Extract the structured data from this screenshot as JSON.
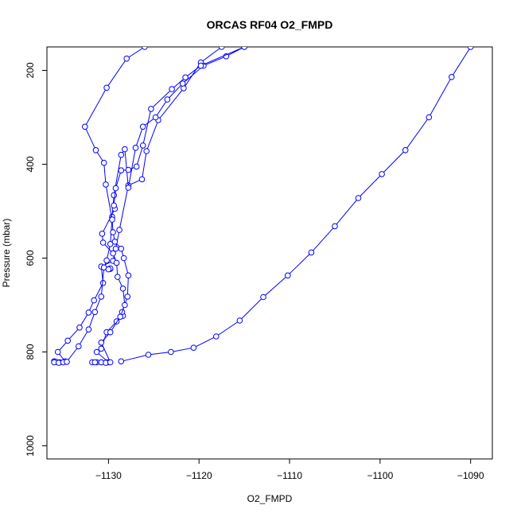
{
  "chart_data": {
    "type": "line",
    "title": "ORCAS RF04 O2_FMPD",
    "xlabel": "O2_FMPD",
    "ylabel": "Pressure (mbar)",
    "xlim": [
      -1136.8,
      -1087.6
    ],
    "ylim": [
      1028,
      150
    ],
    "y_reversed": true,
    "x_ticks": [
      -1130,
      -1120,
      -1110,
      -1100,
      -1090
    ],
    "y_ticks": [
      200,
      400,
      600,
      800,
      1000
    ],
    "grid": false,
    "legend": "none",
    "marker": "open-circle",
    "line_color": "#0000ff",
    "series": [
      {
        "points": [
          [
            -1136,
            820
          ],
          [
            -1135.8,
            821
          ],
          [
            -1135.4,
            822
          ],
          [
            -1135,
            822
          ],
          [
            -1134.8,
            820
          ],
          [
            -1135.6,
            800
          ],
          [
            -1134.5,
            776
          ],
          [
            -1133.2,
            748
          ],
          [
            -1132.2,
            716
          ],
          [
            -1131.6,
            690
          ],
          [
            -1130.6,
            653
          ],
          [
            -1130.8,
            618
          ],
          [
            -1129.5,
            606
          ],
          [
            -1129.2,
            580
          ],
          [
            -1128.8,
            540
          ],
          [
            -1127.8,
            445
          ],
          [
            -1126.3,
            432
          ],
          [
            -1125.8,
            372
          ],
          [
            -1124.5,
            306
          ],
          [
            -1121.7,
            238
          ],
          [
            -1119.8,
            183
          ],
          [
            -1117.5,
            150
          ]
        ]
      },
      {
        "points": [
          [
            -1136,
            822
          ],
          [
            -1135.5,
            823
          ],
          [
            -1135,
            822
          ],
          [
            -1134.6,
            821
          ],
          [
            -1133.3,
            788
          ],
          [
            -1132.2,
            752
          ],
          [
            -1131.5,
            715
          ],
          [
            -1130.8,
            682
          ],
          [
            -1130.5,
            620
          ],
          [
            -1130.2,
            605
          ],
          [
            -1129.8,
            570
          ],
          [
            -1129.6,
            512
          ],
          [
            -1129.4,
            466
          ],
          [
            -1128.6,
            380
          ],
          [
            -1128.2,
            368
          ],
          [
            -1127.8,
            450
          ],
          [
            -1127,
            365
          ],
          [
            -1126.2,
            320
          ],
          [
            -1124.8,
            300
          ],
          [
            -1123.5,
            262
          ],
          [
            -1121.8,
            228
          ],
          [
            -1119.5,
            190
          ],
          [
            -1117,
            170
          ],
          [
            -1115,
            150
          ]
        ]
      },
      {
        "points": [
          [
            -1131.8,
            822
          ],
          [
            -1131.3,
            822
          ],
          [
            -1130.8,
            822
          ],
          [
            -1130.2,
            822
          ],
          [
            -1130,
            822
          ],
          [
            -1131.3,
            800
          ],
          [
            -1130.8,
            793
          ],
          [
            -1130.2,
            758
          ],
          [
            -1129.1,
            735
          ],
          [
            -1128.4,
            723
          ],
          [
            -1128.5,
            715
          ],
          [
            -1127.9,
            682
          ],
          [
            -1127.8,
            637
          ],
          [
            -1128.3,
            600
          ],
          [
            -1128.6,
            580
          ],
          [
            -1129.3,
            565
          ],
          [
            -1129.5,
            545
          ],
          [
            -1129.6,
            518
          ],
          [
            -1130.3,
            443
          ],
          [
            -1130.5,
            397
          ],
          [
            -1131.4,
            370
          ],
          [
            -1132.6,
            320
          ],
          [
            -1130.2,
            237
          ],
          [
            -1128,
            175
          ],
          [
            -1126,
            150
          ]
        ]
      },
      {
        "points": [
          [
            -1131.5,
            822
          ],
          [
            -1130.8,
            822
          ],
          [
            -1130.3,
            823
          ],
          [
            -1129.8,
            822
          ],
          [
            -1130.8,
            780
          ],
          [
            -1129.8,
            758
          ],
          [
            -1128.7,
            725
          ],
          [
            -1128.2,
            700
          ],
          [
            -1128.4,
            665
          ],
          [
            -1129,
            640
          ],
          [
            -1129.1,
            610
          ],
          [
            -1129.5,
            590
          ],
          [
            -1130.6,
            567
          ],
          [
            -1130.7,
            548
          ],
          [
            -1129.3,
            495
          ],
          [
            -1129.4,
            488
          ],
          [
            -1129.2,
            451
          ],
          [
            -1128.6,
            413
          ],
          [
            -1127.8,
            412
          ],
          [
            -1126.9,
            405
          ],
          [
            -1126.2,
            360
          ],
          [
            -1125.3,
            282
          ],
          [
            -1123,
            240
          ],
          [
            -1121.5,
            215
          ],
          [
            -1119.8,
            190
          ],
          [
            -1115,
            150
          ]
        ]
      },
      {
        "points": [
          [
            -1128.6,
            820
          ],
          [
            -1125.6,
            806
          ],
          [
            -1123.1,
            800
          ],
          [
            -1120.6,
            791
          ],
          [
            -1118.1,
            767
          ],
          [
            -1115.5,
            733
          ],
          [
            -1112.9,
            683
          ],
          [
            -1110.2,
            637
          ],
          [
            -1107.6,
            588
          ],
          [
            -1105,
            532
          ],
          [
            -1102.4,
            472
          ],
          [
            -1099.8,
            421
          ],
          [
            -1097.2,
            370
          ],
          [
            -1094.6,
            300
          ],
          [
            -1092.1,
            214
          ],
          [
            -1090,
            150
          ]
        ]
      },
      {
        "points": [
          [
            -1129.8,
            623
          ],
          [
            -1129.9,
            623
          ],
          [
            -1129.8,
            622
          ],
          [
            -1130.0,
            624
          ]
        ]
      }
    ]
  }
}
